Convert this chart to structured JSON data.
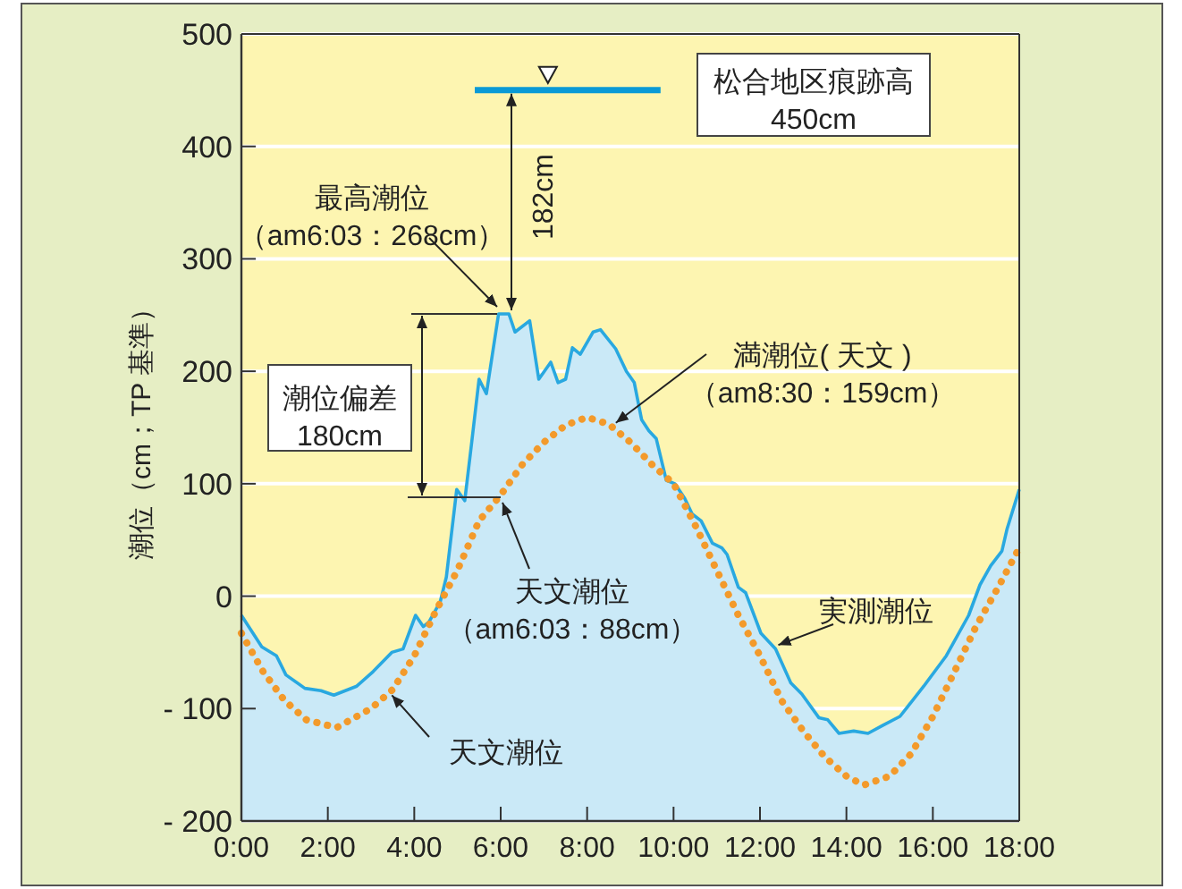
{
  "chart_data": {
    "type": "area",
    "ylabel": "潮位（cm；TP 基準）",
    "xlim": [
      0,
      18
    ],
    "xticks": [
      {
        "value": 0,
        "label": "0:00"
      },
      {
        "value": 2,
        "label": "2:00"
      },
      {
        "value": 4,
        "label": "4:00"
      },
      {
        "value": 6,
        "label": "6:00"
      },
      {
        "value": 8,
        "label": "8:00"
      },
      {
        "value": 10,
        "label": "10:00"
      },
      {
        "value": 12,
        "label": "12:00"
      },
      {
        "value": 14,
        "label": "14:00"
      },
      {
        "value": 16,
        "label": "16:00"
      },
      {
        "value": 18,
        "label": "18:00"
      }
    ],
    "ylim": [
      -200,
      500
    ],
    "yticks": [
      {
        "value": -200,
        "label": "- 200"
      },
      {
        "value": -100,
        "label": "- 100"
      },
      0,
      100,
      200,
      300,
      400,
      500
    ],
    "grid": "y",
    "series": [
      {
        "type": "line",
        "color": "#29a8e0",
        "x": [
          0,
          0.47,
          0.81,
          1.03,
          1.47,
          1.84,
          2.14,
          2.67,
          3.05,
          3.48,
          3.74,
          4.03,
          4.21,
          4.34,
          4.6,
          4.74,
          4.98,
          5.17,
          5.33,
          5.5,
          5.67,
          5.95,
          6.19,
          6.33,
          6.67,
          6.88,
          7.16,
          7.33,
          7.5,
          7.66,
          7.84,
          8.14,
          8.31,
          8.66,
          8.91,
          9.09,
          9.26,
          9.43,
          9.6,
          9.83,
          10.03,
          10.26,
          10.43,
          10.64,
          10.9,
          11.12,
          11.24,
          11.5,
          11.67,
          12.02,
          12.36,
          12.71,
          12.97,
          13.36,
          13.57,
          13.83,
          14.17,
          14.5,
          14.84,
          15.24,
          15.79,
          16.31,
          16.83,
          17.09,
          17.34,
          17.6,
          17.72,
          18
        ],
        "values": [
          -17,
          -45,
          -53,
          -70,
          -82,
          -84,
          -88,
          -80,
          -67,
          -50,
          -47,
          -17,
          -27,
          -23,
          -5,
          17,
          95,
          85,
          137,
          193,
          180,
          251,
          251,
          235,
          245,
          193,
          208,
          190,
          193,
          221,
          215,
          235,
          237,
          220,
          200,
          190,
          157,
          147,
          140,
          103,
          100,
          87,
          73,
          67,
          47,
          43,
          37,
          8,
          3,
          -33,
          -47,
          -77,
          -87,
          -108,
          -110,
          -122,
          -120,
          -122,
          -115,
          -107,
          -80,
          -53,
          -17,
          10,
          27,
          40,
          60,
          95
        ],
        "upper": [
          -17,
          -45,
          -53,
          -70,
          -82,
          -84,
          -88,
          -80,
          -67,
          -50,
          -47,
          -17,
          -27,
          -23,
          -5,
          17,
          95,
          85,
          137,
          193,
          180,
          251,
          251,
          235,
          245,
          193,
          208,
          190,
          193,
          221,
          215,
          235,
          237,
          220,
          200,
          190,
          157,
          147,
          140,
          103,
          100,
          87,
          73,
          67,
          47,
          43,
          37,
          8,
          3,
          -33,
          -47,
          -77,
          -87,
          -108,
          -110,
          -122,
          -120,
          -122,
          -115,
          -107,
          -80,
          -53,
          -17,
          10,
          27,
          40,
          60,
          95
        ],
        "lower": [
          -200,
          -200,
          -200,
          -200,
          -200,
          -200,
          -200,
          -200,
          -200,
          -200,
          -200,
          -200,
          -200,
          -200,
          -200,
          -200,
          -200,
          -200,
          -200,
          -200,
          -200,
          -200,
          -200,
          -200,
          -200,
          -200,
          -200,
          -200,
          -200,
          -200,
          -200,
          -200,
          -200,
          -200,
          -200,
          -200,
          -200,
          -200,
          -200,
          -200,
          -200,
          -200,
          -200,
          -200,
          -200,
          -200,
          -200,
          -200,
          -200,
          -200,
          -200,
          -200,
          -200,
          -200,
          -200,
          -200,
          -200,
          -200,
          -200,
          -200,
          -200,
          -200,
          -200,
          -200,
          -200,
          -200,
          -200,
          -200
        ]
      },
      {
        "type": "line",
        "color": "#f39a2b",
        "line_style": "dotted",
        "x": [
          0,
          0.5,
          1,
          1.5,
          2.2,
          3,
          3.5,
          4,
          4.5,
          5,
          5.5,
          6,
          6.5,
          7,
          7.5,
          8,
          8.5,
          9,
          9.5,
          10,
          10.5,
          11,
          11.5,
          12,
          12.5,
          13,
          13.5,
          14,
          14.4,
          15,
          15.5,
          16,
          16.5,
          17,
          17.5,
          18
        ],
        "values": [
          -33,
          -67,
          -93,
          -110,
          -117,
          -100,
          -83,
          -53,
          -13,
          23,
          67,
          90,
          117,
          137,
          152,
          159,
          153,
          137,
          117,
          100,
          63,
          23,
          -17,
          -53,
          -93,
          -120,
          -143,
          -160,
          -168,
          -160,
          -140,
          -107,
          -67,
          -27,
          7,
          43
        ]
      },
      {
        "type": "line",
        "color": "#0a9ad6",
        "x": [
          5.4,
          9.7
        ],
        "values": [
          450,
          450
        ]
      }
    ],
    "annotations": [
      {
        "text": "松合地区痕跡高\n450cm",
        "x": 9.7,
        "y": 450
      },
      {
        "text": "最高潮位（am6:03：268cm）",
        "x": 6.0,
        "y": 251
      },
      "182cm",
      "潮位偏差\n180cm",
      {
        "text": "満潮位( 天文 )（am8:30：159cm）",
        "x": 8.5,
        "y": 159
      },
      {
        "text": "天文潮位（am6:03：88cm）",
        "x": 6.0,
        "y": 88
      },
      {
        "text": "実測潮位",
        "x": 12.3,
        "y": -45
      },
      {
        "text": "天文潮位",
        "x": 3.4,
        "y": -85
      }
    ]
  }
}
